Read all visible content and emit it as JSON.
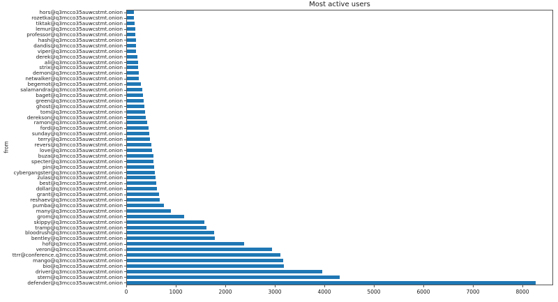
{
  "chart_data": {
    "type": "bar",
    "orientation": "horizontal",
    "title": "Most active users",
    "xlabel": "",
    "ylabel": "from",
    "bar_color": "#1f77b4",
    "axis_color": "#545454",
    "grid": false,
    "legend": false,
    "xlim": [
      0,
      8620
    ],
    "xticks": [
      0,
      1000,
      2000,
      3000,
      4000,
      5000,
      6000,
      7000,
      8000
    ],
    "categories": [
      "hors@q3mcco35auwcstmt.onion",
      "rozetka@q3mcco35auwcstmt.onion",
      "tiktak@q3mcco35auwcstmt.onion",
      "lemur@q3mcco35auwcstmt.onion",
      "professor@q3mcco35auwcstmt.onion",
      "hash@q3mcco35auwcstmt.onion",
      "dandis@q3mcco35auwcstmt.onion",
      "viper@q3mcco35auwcstmt.onion",
      "derek@q3mcco35auwcstmt.onion",
      "ali@q3mcco35auwcstmt.onion",
      "strix@q3mcco35auwcstmt.onion",
      "demon@q3mcco35auwcstmt.onion",
      "netwalker@q3mcco35auwcstmt.onion",
      "begemot@q3mcco35auwcstmt.onion",
      "salamandra@q3mcco35auwcstmt.onion",
      "baget@q3mcco35auwcstmt.onion",
      "green@q3mcco35auwcstmt.onion",
      "ghost@q3mcco35auwcstmt.onion",
      "tom@q3mcco35auwcstmt.onion",
      "derekson@q3mcco35auwcstmt.onion",
      "ramon@q3mcco35auwcstmt.onion",
      "ford@q3mcco35auwcstmt.onion",
      "sunday@q3mcco35auwcstmt.onion",
      "terry@q3mcco35auwcstmt.onion",
      "revers@q3mcco35auwcstmt.onion",
      "love@q3mcco35auwcstmt.onion",
      "buza@q3mcco35auwcstmt.onion",
      "specter@q3mcco35auwcstmt.onion",
      "pin@q3mcco35auwcstmt.onion",
      "cybergangster@q3mcco35auwcstmt.onion",
      "zulas@q3mcco35auwcstmt.onion",
      "best@q3mcco35auwcstmt.onion",
      "dollar@q3mcco35auwcstmt.onion",
      "grant@q3mcco35auwcstmt.onion",
      "reshaev@q3mcco35auwcstmt.onion",
      "pumba@q3mcco35auwcstmt.onion",
      "many@q3mcco35auwcstmt.onion",
      "grom@q3mcco35auwcstmt.onion",
      "skippy@q3mcco35auwcstmt.onion",
      "tramp@q3mcco35auwcstmt.onion",
      "bloodrush@q3mcco35auwcstmt.onion",
      "bentley@q3mcco35auwcstmt.onion",
      "hof@q3mcco35auwcstmt.onion",
      "veron@q3mcco35auwcstmt.onion",
      "ttrr@conference.q3mcco35auwcstmt.onion",
      "mango@q3mcco35auwcstmt.onion",
      "bio@q3mcco35auwcstmt.onion",
      "driver@q3mcco35auwcstmt.onion",
      "stern@q3mcco35auwcstmt.onion",
      "defender@q3mcco35auwcstmt.onion"
    ],
    "values": [
      140,
      140,
      155,
      165,
      175,
      185,
      185,
      190,
      205,
      225,
      225,
      235,
      245,
      280,
      315,
      325,
      340,
      350,
      360,
      385,
      410,
      430,
      445,
      470,
      490,
      505,
      530,
      540,
      550,
      560,
      575,
      590,
      600,
      650,
      660,
      740,
      890,
      1160,
      1570,
      1610,
      1760,
      1780,
      2360,
      2930,
      3100,
      3160,
      3170,
      3950,
      4300,
      8250
    ]
  }
}
